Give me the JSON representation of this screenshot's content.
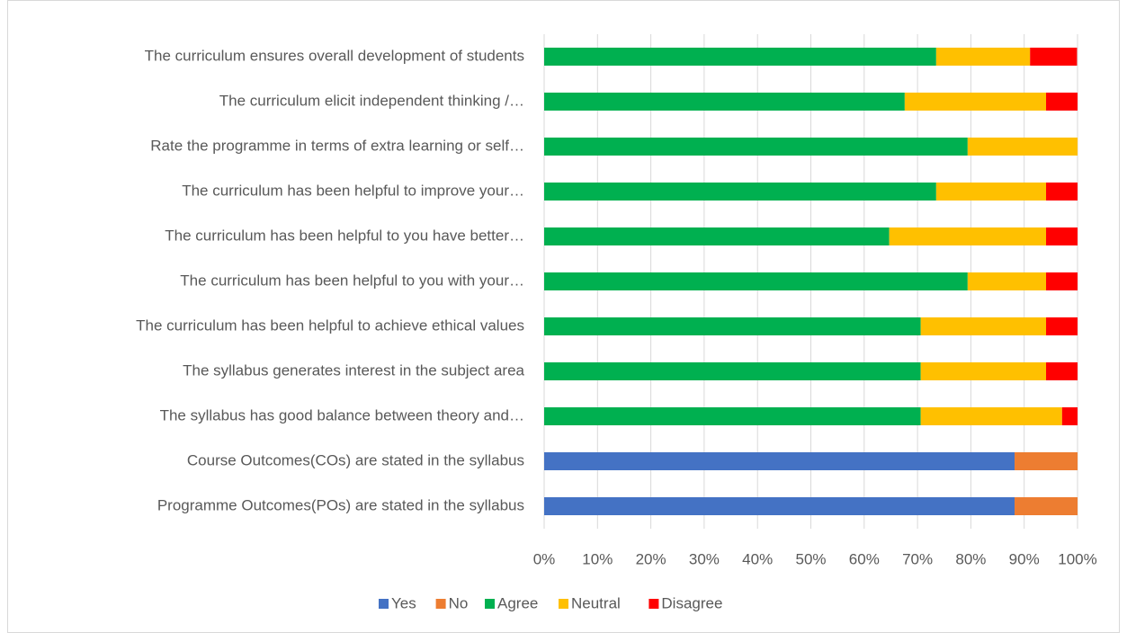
{
  "chart_data": {
    "type": "stacked_barh",
    "categories": [
      "The curriculum ensures overall development of students",
      "The curriculum elicit independent thinking /…",
      "Rate the programme in terms of extra learning or self…",
      "The curriculum has been helpful to improve your…",
      "The curriculum has been helpful to you have better…",
      "The curriculum has been helpful to you with your…",
      "The curriculum has been helpful to achieve ethical values",
      "The syllabus generates interest in the subject area",
      "The syllabus has good balance between theory and…",
      "Course Outcomes(COs) are stated in the syllabus",
      "Programme Outcomes(POs) are stated in the syllabus"
    ],
    "series": [
      {
        "name": "Yes",
        "color": "#4472c4",
        "values": [
          null,
          null,
          null,
          null,
          null,
          null,
          null,
          null,
          null,
          88.2,
          88.2
        ]
      },
      {
        "name": "No",
        "color": "#ed7d31",
        "values": [
          null,
          null,
          null,
          null,
          null,
          null,
          null,
          null,
          null,
          11.8,
          11.8
        ]
      },
      {
        "name": "Agree",
        "color": "#00b050",
        "values": [
          73.5,
          67.6,
          79.4,
          73.5,
          64.7,
          79.4,
          70.6,
          70.6,
          70.6,
          null,
          null
        ]
      },
      {
        "name": "Neutral",
        "color": "#ffc000",
        "values": [
          17.6,
          26.5,
          20.6,
          20.6,
          29.4,
          14.7,
          23.5,
          23.5,
          26.5,
          null,
          null
        ]
      },
      {
        "name": "Disagree",
        "color": "#ff0000",
        "values": [
          8.8,
          5.9,
          0,
          5.9,
          5.9,
          5.9,
          5.9,
          5.9,
          2.9,
          null,
          null
        ]
      }
    ],
    "xlim": [
      0,
      100
    ],
    "xticks": [
      {
        "value": 0,
        "label": "0%"
      },
      {
        "value": 10,
        "label": "10%"
      },
      {
        "value": 20,
        "label": "20%"
      },
      {
        "value": 30,
        "label": "30%"
      },
      {
        "value": 40,
        "label": "40%"
      },
      {
        "value": 50,
        "label": "50%"
      },
      {
        "value": 60,
        "label": "60%"
      },
      {
        "value": 70,
        "label": "70%"
      },
      {
        "value": 80,
        "label": "80%"
      },
      {
        "value": 90,
        "label": "90%"
      },
      {
        "value": 100,
        "label": "100%"
      }
    ],
    "grid": true,
    "legend": "bottom"
  }
}
